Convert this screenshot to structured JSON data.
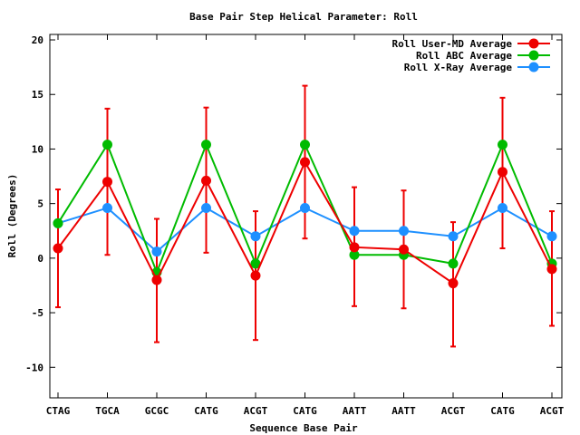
{
  "chart_data": {
    "type": "line",
    "title": "Base Pair Step Helical Parameter: Roll",
    "xlabel": "Sequence Base Pair",
    "ylabel": "Roll (Degrees)",
    "categories": [
      "CTAG",
      "TGCA",
      "GCGC",
      "CATG",
      "ACGT",
      "CATG",
      "AATT",
      "AATT",
      "ACGT",
      "CATG",
      "ACGT"
    ],
    "ylim": [
      -12.8,
      20.5
    ],
    "yticks": [
      -10,
      -5,
      0,
      5,
      10,
      15,
      20
    ],
    "legend_position": "top-right",
    "grid": false,
    "series": [
      {
        "name": "Roll User-MD Average",
        "color": "#ee0000",
        "values": [
          0.9,
          7.0,
          -2.0,
          7.1,
          -1.6,
          8.8,
          1.0,
          0.8,
          -2.3,
          7.9,
          -1.0
        ],
        "error_low": [
          -4.5,
          0.3,
          -7.7,
          0.5,
          -7.5,
          1.8,
          -4.4,
          -4.6,
          -8.1,
          0.9,
          -6.2
        ],
        "error_high": [
          6.3,
          13.7,
          3.6,
          13.8,
          4.3,
          15.8,
          6.5,
          6.2,
          3.3,
          14.7,
          4.3
        ]
      },
      {
        "name": "Roll ABC Average",
        "color": "#00bb00",
        "values": [
          3.2,
          10.4,
          -1.3,
          10.4,
          -0.5,
          10.4,
          0.3,
          0.3,
          -0.5,
          10.4,
          -0.5
        ]
      },
      {
        "name": "Roll X-Ray Average",
        "color": "#1e90ff",
        "values": [
          3.2,
          4.6,
          0.6,
          4.6,
          2.0,
          4.6,
          2.5,
          2.5,
          2.0,
          4.6,
          2.0
        ]
      }
    ]
  }
}
